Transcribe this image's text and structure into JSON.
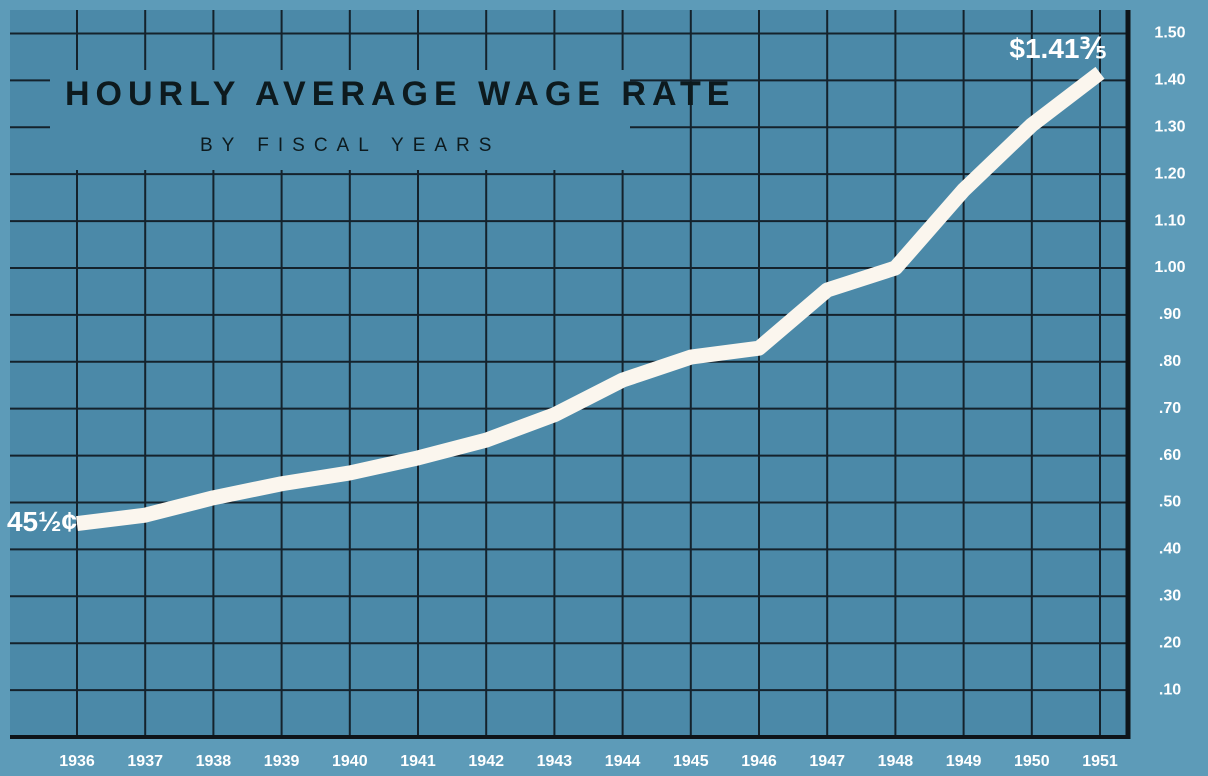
{
  "chart_data": {
    "type": "line",
    "title": "HOURLY AVERAGE WAGE RATE",
    "subtitle": "BY FISCAL YEARS",
    "categories": [
      "1936",
      "1937",
      "1938",
      "1939",
      "1940",
      "1941",
      "1942",
      "1943",
      "1944",
      "1945",
      "1946",
      "1947",
      "1948",
      "1949",
      "1950",
      "1951"
    ],
    "series": [
      {
        "name": null,
        "color": "#fbf6ee",
        "values": [
          0.455,
          0.473,
          0.51,
          0.54,
          0.563,
          0.595,
          0.633,
          0.687,
          0.761,
          0.81,
          0.829,
          0.953,
          1.0,
          1.166,
          1.305,
          1.416
        ],
        "value_labels": [
          "45½¢",
          null,
          null,
          null,
          null,
          null,
          null,
          null,
          null,
          null,
          null,
          null,
          null,
          null,
          null,
          "$1.41⅗"
        ]
      }
    ],
    "ylim": [
      0,
      1.55
    ],
    "yticks": [
      {
        "value": 0.1,
        "label": ".10"
      },
      {
        "value": 0.2,
        "label": ".20"
      },
      {
        "value": 0.3,
        "label": ".30"
      },
      {
        "value": 0.4,
        "label": ".40"
      },
      {
        "value": 0.5,
        "label": ".50"
      },
      {
        "value": 0.6,
        "label": ".60"
      },
      {
        "value": 0.7,
        "label": ".70"
      },
      {
        "value": 0.8,
        "label": ".80"
      },
      {
        "value": 0.9,
        "label": ".90"
      },
      {
        "value": 1.0,
        "label": "1.00"
      },
      {
        "value": 1.1,
        "label": "1.10"
      },
      {
        "value": 1.2,
        "label": "1.20"
      },
      {
        "value": 1.3,
        "label": "1.30"
      },
      {
        "value": 1.4,
        "label": "1.40"
      },
      {
        "value": 1.5,
        "label": "1.50"
      }
    ],
    "y_axis_side": "right",
    "grid": true
  }
}
